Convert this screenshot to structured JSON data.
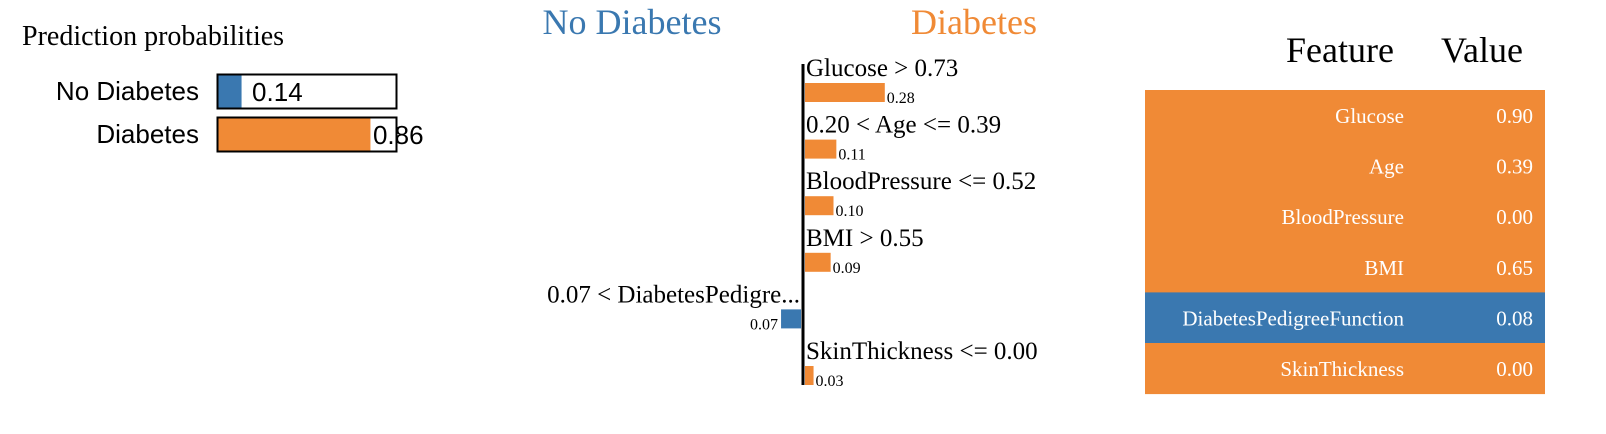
{
  "colors": {
    "negative": "#3a78b0",
    "positive": "#f08a36",
    "text": "#000000",
    "table_text": "#ffffff",
    "axis": "#000000"
  },
  "probabilities": {
    "title": "Prediction probabilities",
    "items": [
      {
        "label": "No Diabetes",
        "value": 0.14,
        "value_text": "0.14",
        "color_key": "negative"
      },
      {
        "label": "Diabetes",
        "value": 0.86,
        "value_text": "0.86",
        "color_key": "positive"
      }
    ]
  },
  "explanation": {
    "negative_label": "No Diabetes",
    "positive_label": "Diabetes"
  },
  "feature_table": {
    "headers": [
      "Feature",
      "Value"
    ],
    "rows": [
      {
        "feature": "Glucose",
        "value": "0.90",
        "color_key": "positive"
      },
      {
        "feature": "Age",
        "value": "0.39",
        "color_key": "positive"
      },
      {
        "feature": "BloodPressure",
        "value": "0.00",
        "color_key": "positive"
      },
      {
        "feature": "BMI",
        "value": "0.65",
        "color_key": "positive"
      },
      {
        "feature": "DiabetesPedigreeFunction",
        "value": "0.08",
        "color_key": "negative"
      },
      {
        "feature": "SkinThickness",
        "value": "0.00",
        "color_key": "positive"
      }
    ]
  },
  "chart_data": [
    {
      "type": "bar",
      "orientation": "horizontal",
      "title": "Prediction probabilities",
      "categories": [
        "No Diabetes",
        "Diabetes"
      ],
      "values": [
        0.14,
        0.86
      ],
      "xlim": [
        0,
        1
      ]
    },
    {
      "type": "bar",
      "orientation": "horizontal",
      "title": "",
      "legend": [
        "No Diabetes",
        "Diabetes"
      ],
      "categories": [
        "Glucose > 0.73",
        "0.20 < Age <= 0.39",
        "BloodPressure <= 0.52",
        "BMI > 0.55",
        "0.07 < DiabetesPedigre...",
        "SkinThickness <= 0.00"
      ],
      "values": [
        0.28,
        0.11,
        0.1,
        0.09,
        -0.07,
        0.03
      ],
      "value_labels": [
        "0.28",
        "0.11",
        "0.10",
        "0.09",
        "0.07",
        "0.03"
      ],
      "xlabel": "",
      "ylabel": ""
    }
  ]
}
